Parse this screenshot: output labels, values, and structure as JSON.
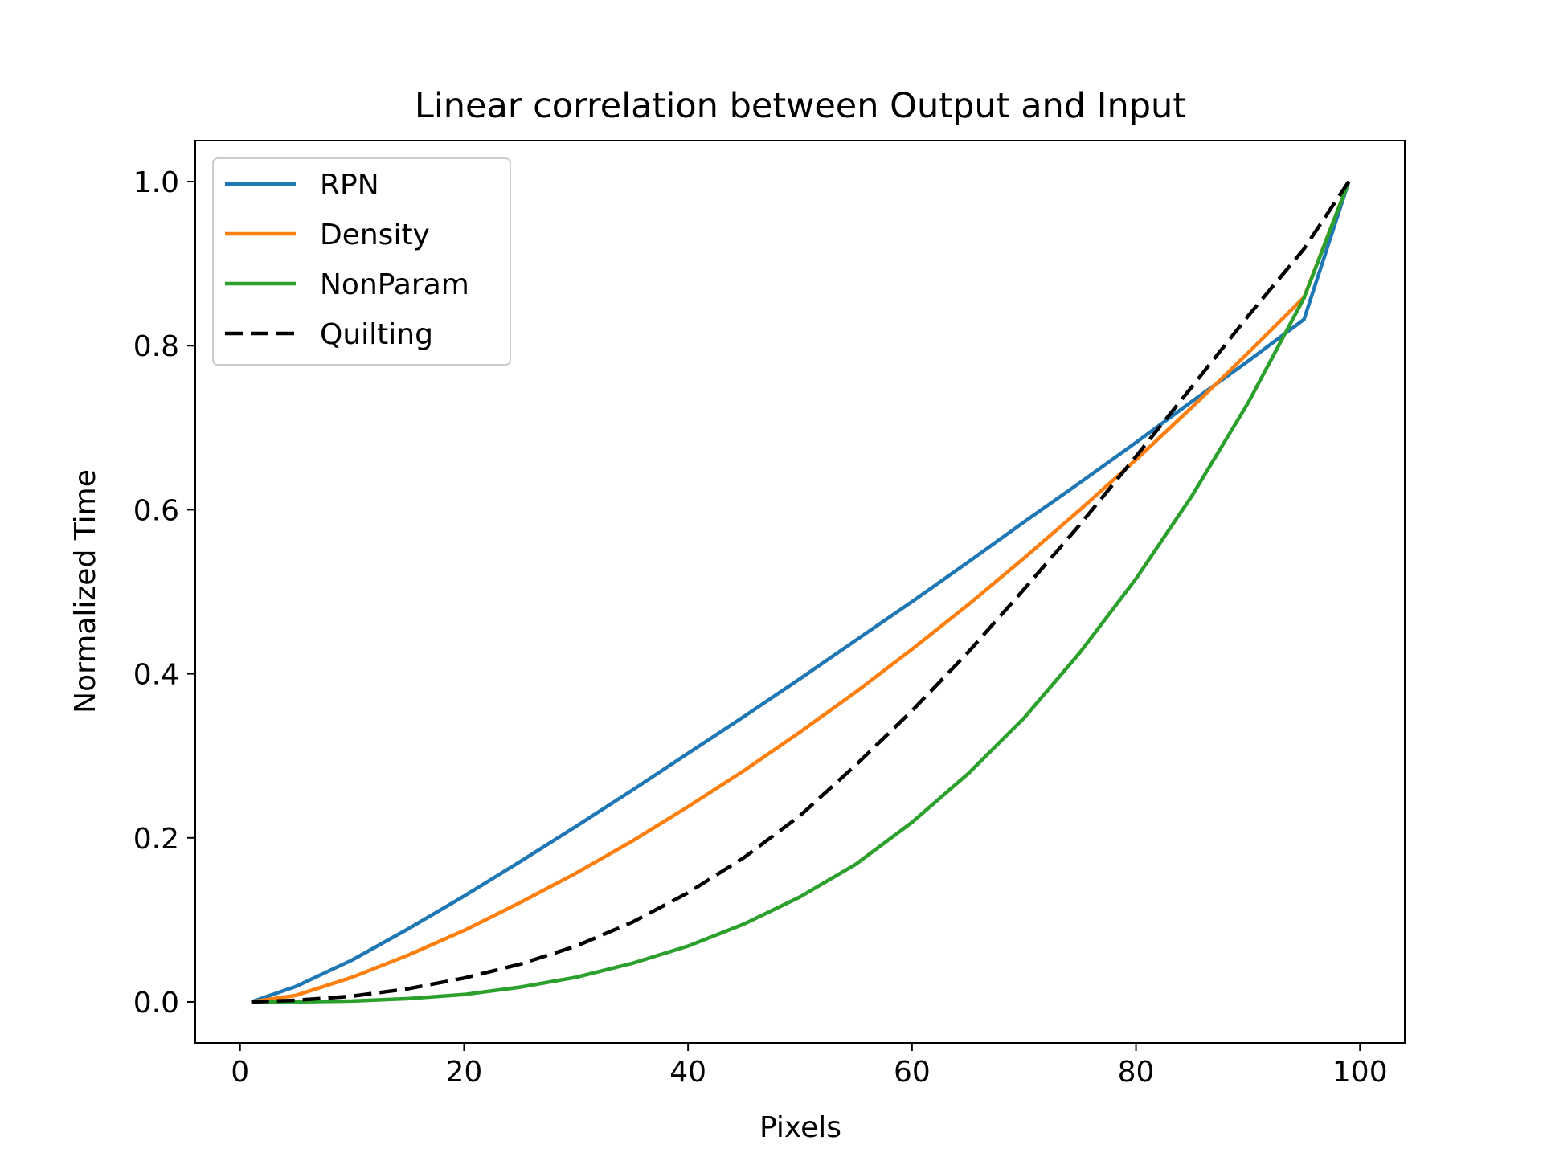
{
  "chart_data": {
    "type": "line",
    "title": "Linear correlation between Output and Input",
    "xlabel": "Pixels",
    "ylabel": "Normalized Time",
    "xlim": [
      -4,
      104
    ],
    "ylim": [
      -0.05,
      1.05
    ],
    "xticks": [
      0,
      20,
      40,
      60,
      80,
      100
    ],
    "xtick_labels": [
      "0",
      "20",
      "40",
      "60",
      "80",
      "100"
    ],
    "yticks": [
      0.0,
      0.2,
      0.4,
      0.6,
      0.8,
      1.0
    ],
    "ytick_labels": [
      "0.0",
      "0.2",
      "0.4",
      "0.6",
      "0.8",
      "1.0"
    ],
    "grid": false,
    "legend_position": "top-left",
    "x": [
      1,
      5,
      10,
      15,
      20,
      25,
      30,
      35,
      40,
      45,
      50,
      55,
      60,
      65,
      70,
      75,
      80,
      85,
      90,
      95,
      99
    ],
    "series": [
      {
        "name": "RPN",
        "color": "#1f77b4",
        "style": "solid",
        "values": [
          0.0,
          0.019,
          0.051,
          0.089,
          0.129,
          0.171,
          0.214,
          0.258,
          0.303,
          0.348,
          0.394,
          0.441,
          0.488,
          0.536,
          0.585,
          0.633,
          0.682,
          0.732,
          0.781,
          0.832,
          1.0
        ]
      },
      {
        "name": "Density",
        "color": "#ff7f0e",
        "style": "solid",
        "values": [
          0.0,
          0.008,
          0.03,
          0.057,
          0.087,
          0.121,
          0.157,
          0.196,
          0.238,
          0.282,
          0.329,
          0.378,
          0.43,
          0.484,
          0.541,
          0.6,
          0.661,
          0.725,
          0.791,
          0.859,
          1.0
        ]
      },
      {
        "name": "NonParam",
        "color": "#2ca02c",
        "style": "solid",
        "values": [
          0.0,
          0.0,
          0.001,
          0.004,
          0.009,
          0.018,
          0.03,
          0.047,
          0.068,
          0.095,
          0.128,
          0.168,
          0.219,
          0.278,
          0.346,
          0.426,
          0.516,
          0.617,
          0.73,
          0.858,
          1.0
        ]
      },
      {
        "name": "Quilting",
        "color": "#000000",
        "style": "dashed",
        "values": [
          0.0,
          0.002,
          0.007,
          0.016,
          0.029,
          0.046,
          0.068,
          0.097,
          0.133,
          0.176,
          0.227,
          0.289,
          0.355,
          0.426,
          0.503,
          0.582,
          0.665,
          0.75,
          0.836,
          0.918,
          1.0
        ]
      }
    ]
  }
}
